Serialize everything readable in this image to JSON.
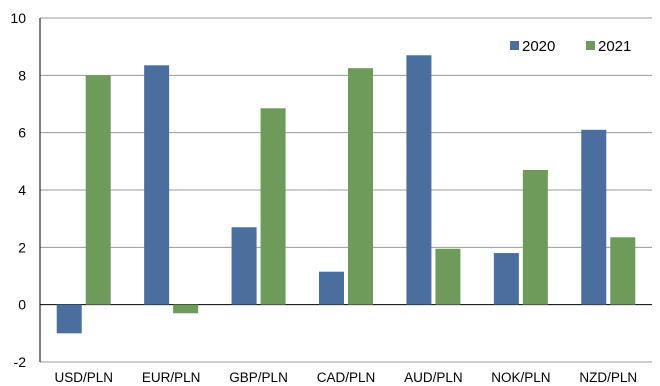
{
  "chart_data": {
    "type": "bar",
    "title": "",
    "xlabel": "",
    "ylabel": "",
    "ylim": [
      -2,
      10
    ],
    "yticks": [
      -2,
      0,
      2,
      4,
      6,
      8,
      10
    ],
    "categories": [
      "USD/PLN",
      "EUR/PLN",
      "GBP/PLN",
      "CAD/PLN",
      "AUD/PLN",
      "NOK/PLN",
      "NZD/PLN"
    ],
    "series": [
      {
        "name": "2020",
        "color": "#4a6f9f",
        "values": [
          -1.0,
          8.35,
          2.7,
          1.15,
          8.7,
          1.8,
          6.1
        ]
      },
      {
        "name": "2021",
        "color": "#6e9a5a",
        "values": [
          8.0,
          -0.3,
          6.85,
          8.25,
          1.95,
          4.7,
          2.35
        ]
      }
    ],
    "grid": true,
    "legend_position": "top-right"
  }
}
